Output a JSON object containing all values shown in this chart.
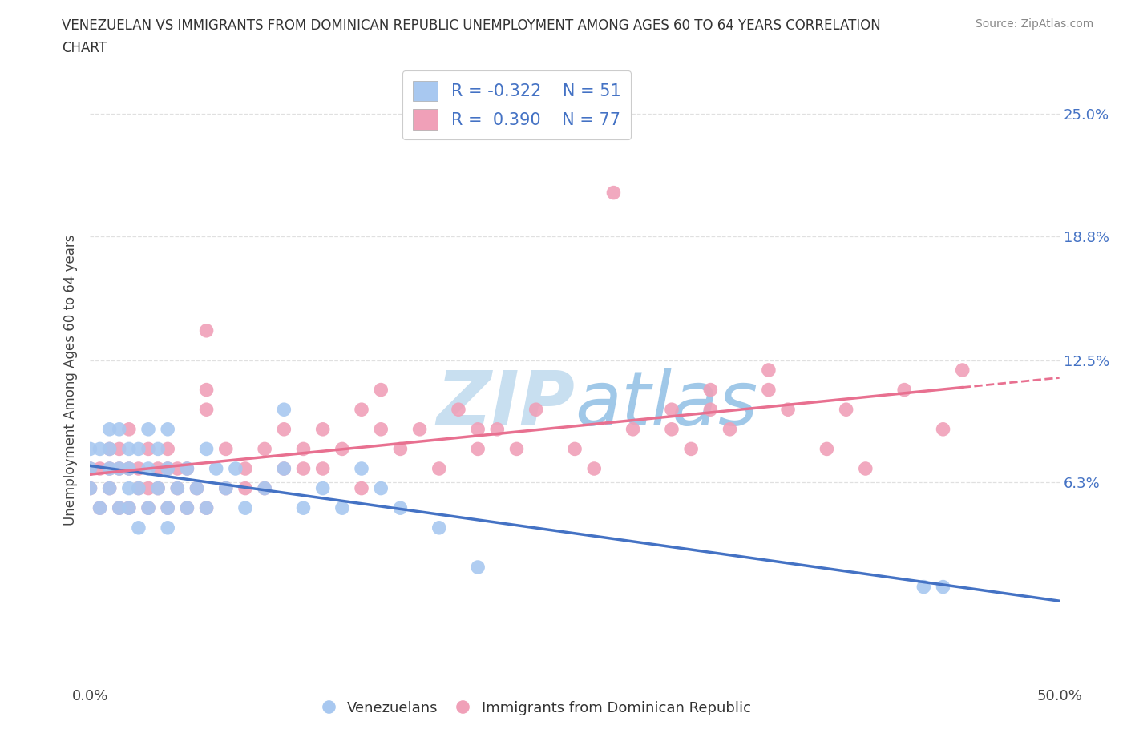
{
  "title": "VENEZUELAN VS IMMIGRANTS FROM DOMINICAN REPUBLIC UNEMPLOYMENT AMONG AGES 60 TO 64 YEARS CORRELATION\nCHART",
  "source": "Source: ZipAtlas.com",
  "ylabel": "Unemployment Among Ages 60 to 64 years",
  "xlim": [
    0.0,
    0.5
  ],
  "ylim": [
    -0.04,
    0.27
  ],
  "xticks": [
    0.0,
    0.1,
    0.2,
    0.3,
    0.4,
    0.5
  ],
  "xticklabels": [
    "0.0%",
    "",
    "",
    "",
    "",
    "50.0%"
  ],
  "ytick_values": [
    0.063,
    0.125,
    0.188,
    0.25
  ],
  "ytick_labels": [
    "6.3%",
    "12.5%",
    "18.8%",
    "25.0%"
  ],
  "blue_color": "#a8c8f0",
  "pink_color": "#f0a0b8",
  "blue_line_color": "#4472c4",
  "pink_line_color": "#e87090",
  "R_blue": -0.322,
  "N_blue": 51,
  "R_pink": 0.39,
  "N_pink": 77,
  "blue_scatter_x": [
    0.0,
    0.0,
    0.0,
    0.005,
    0.005,
    0.01,
    0.01,
    0.01,
    0.01,
    0.015,
    0.015,
    0.015,
    0.02,
    0.02,
    0.02,
    0.02,
    0.025,
    0.025,
    0.025,
    0.03,
    0.03,
    0.03,
    0.035,
    0.035,
    0.04,
    0.04,
    0.04,
    0.04,
    0.045,
    0.05,
    0.05,
    0.055,
    0.06,
    0.06,
    0.065,
    0.07,
    0.075,
    0.08,
    0.09,
    0.1,
    0.1,
    0.11,
    0.12,
    0.13,
    0.14,
    0.15,
    0.16,
    0.18,
    0.2,
    0.43,
    0.44
  ],
  "blue_scatter_y": [
    0.06,
    0.07,
    0.08,
    0.05,
    0.08,
    0.06,
    0.07,
    0.08,
    0.09,
    0.05,
    0.07,
    0.09,
    0.05,
    0.06,
    0.07,
    0.08,
    0.04,
    0.06,
    0.08,
    0.05,
    0.07,
    0.09,
    0.06,
    0.08,
    0.04,
    0.05,
    0.07,
    0.09,
    0.06,
    0.05,
    0.07,
    0.06,
    0.05,
    0.08,
    0.07,
    0.06,
    0.07,
    0.05,
    0.06,
    0.07,
    0.1,
    0.05,
    0.06,
    0.05,
    0.07,
    0.06,
    0.05,
    0.04,
    0.02,
    0.01,
    0.01
  ],
  "pink_scatter_x": [
    0.0,
    0.0,
    0.005,
    0.005,
    0.01,
    0.01,
    0.01,
    0.015,
    0.015,
    0.015,
    0.02,
    0.02,
    0.02,
    0.025,
    0.025,
    0.03,
    0.03,
    0.03,
    0.035,
    0.035,
    0.04,
    0.04,
    0.04,
    0.045,
    0.045,
    0.05,
    0.05,
    0.055,
    0.06,
    0.06,
    0.07,
    0.07,
    0.08,
    0.08,
    0.09,
    0.09,
    0.1,
    0.1,
    0.11,
    0.11,
    0.12,
    0.12,
    0.13,
    0.14,
    0.14,
    0.15,
    0.16,
    0.17,
    0.18,
    0.19,
    0.2,
    0.21,
    0.22,
    0.23,
    0.25,
    0.26,
    0.27,
    0.28,
    0.3,
    0.31,
    0.32,
    0.33,
    0.35,
    0.36,
    0.38,
    0.39,
    0.4,
    0.42,
    0.44,
    0.45,
    0.06,
    0.06,
    0.15,
    0.2,
    0.3,
    0.32,
    0.35
  ],
  "pink_scatter_y": [
    0.06,
    0.07,
    0.05,
    0.07,
    0.06,
    0.07,
    0.08,
    0.05,
    0.07,
    0.08,
    0.05,
    0.07,
    0.09,
    0.06,
    0.07,
    0.05,
    0.06,
    0.08,
    0.06,
    0.07,
    0.05,
    0.07,
    0.08,
    0.06,
    0.07,
    0.05,
    0.07,
    0.06,
    0.05,
    0.14,
    0.06,
    0.08,
    0.06,
    0.07,
    0.06,
    0.08,
    0.07,
    0.09,
    0.07,
    0.08,
    0.07,
    0.09,
    0.08,
    0.06,
    0.1,
    0.09,
    0.08,
    0.09,
    0.07,
    0.1,
    0.08,
    0.09,
    0.08,
    0.1,
    0.08,
    0.07,
    0.21,
    0.09,
    0.1,
    0.08,
    0.1,
    0.09,
    0.12,
    0.1,
    0.08,
    0.1,
    0.07,
    0.11,
    0.09,
    0.12,
    0.1,
    0.11,
    0.11,
    0.09,
    0.09,
    0.11,
    0.11
  ],
  "background_color": "#ffffff",
  "grid_color": "#e0e0e0",
  "watermark_color": "#d8ecf8",
  "legend_label_blue": "Venezuelans",
  "legend_label_pink": "Immigrants from Dominican Republic"
}
